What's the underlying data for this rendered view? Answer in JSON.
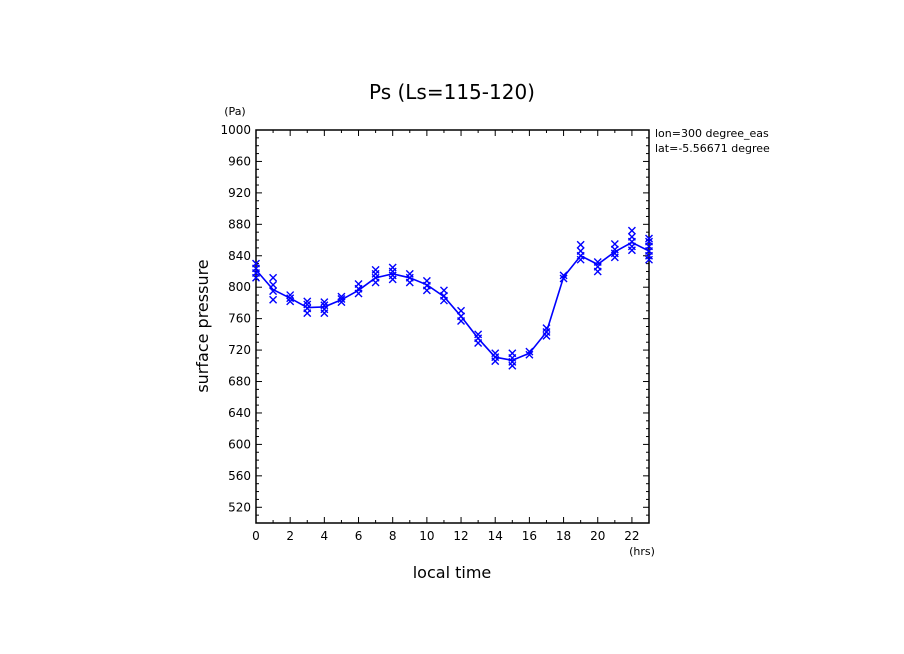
{
  "chart_data": {
    "type": "line",
    "title": "Ps (Ls=115-120)",
    "xlabel": "local time",
    "ylabel": "surface pressure",
    "x_unit": "(hrs)",
    "y_unit": "(Pa)",
    "xlim": [
      0,
      23
    ],
    "ylim": [
      500,
      1000
    ],
    "x_ticks": [
      0,
      2,
      4,
      6,
      8,
      10,
      12,
      14,
      16,
      18,
      20,
      22
    ],
    "y_ticks": [
      520,
      560,
      600,
      640,
      680,
      720,
      760,
      800,
      840,
      880,
      920,
      960,
      1000
    ],
    "x_minor_step": 1,
    "y_minor_step": 10,
    "grid": false,
    "annotations": [
      "lon=300 degree_eas",
      "lat=-5.56671 degree"
    ],
    "color": "#0000ff",
    "series": [
      {
        "style": "line",
        "x": [
          0,
          1,
          2,
          3,
          4,
          5,
          6,
          7,
          8,
          9,
          10,
          11,
          12,
          13,
          14,
          15,
          16,
          17,
          18,
          19,
          20,
          21,
          22,
          23
        ],
        "values": [
          822,
          797,
          786,
          774,
          775,
          784,
          796,
          812,
          817,
          812,
          803,
          788,
          763,
          735,
          711,
          707,
          716,
          743,
          813,
          840,
          829,
          845,
          857,
          846
        ]
      },
      {
        "style": "x-markers",
        "points": [
          [
            0,
            812
          ],
          [
            0,
            818
          ],
          [
            0,
            824
          ],
          [
            0,
            830
          ],
          [
            1,
            784
          ],
          [
            1,
            795
          ],
          [
            1,
            803
          ],
          [
            1,
            812
          ],
          [
            2,
            782
          ],
          [
            2,
            786
          ],
          [
            2,
            790
          ],
          [
            3,
            767
          ],
          [
            3,
            773
          ],
          [
            3,
            778
          ],
          [
            3,
            782
          ],
          [
            4,
            767
          ],
          [
            4,
            772
          ],
          [
            4,
            777
          ],
          [
            4,
            781
          ],
          [
            5,
            781
          ],
          [
            5,
            785
          ],
          [
            5,
            788
          ],
          [
            6,
            792
          ],
          [
            6,
            798
          ],
          [
            6,
            804
          ],
          [
            7,
            806
          ],
          [
            7,
            812
          ],
          [
            7,
            817
          ],
          [
            7,
            822
          ],
          [
            8,
            810
          ],
          [
            8,
            815
          ],
          [
            8,
            820
          ],
          [
            8,
            825
          ],
          [
            9,
            806
          ],
          [
            9,
            812
          ],
          [
            9,
            817
          ],
          [
            10,
            796
          ],
          [
            10,
            802
          ],
          [
            10,
            808
          ],
          [
            11,
            783
          ],
          [
            11,
            789
          ],
          [
            11,
            796
          ],
          [
            12,
            757
          ],
          [
            12,
            763
          ],
          [
            12,
            770
          ],
          [
            13,
            729
          ],
          [
            13,
            735
          ],
          [
            13,
            740
          ],
          [
            14,
            706
          ],
          [
            14,
            711
          ],
          [
            14,
            716
          ],
          [
            15,
            700
          ],
          [
            15,
            705
          ],
          [
            15,
            710
          ],
          [
            15,
            716
          ],
          [
            16,
            714
          ],
          [
            16,
            718
          ],
          [
            17,
            738
          ],
          [
            17,
            743
          ],
          [
            17,
            748
          ],
          [
            18,
            811
          ],
          [
            18,
            815
          ],
          [
            19,
            835
          ],
          [
            19,
            840
          ],
          [
            19,
            846
          ],
          [
            19,
            854
          ],
          [
            20,
            820
          ],
          [
            20,
            826
          ],
          [
            20,
            832
          ],
          [
            21,
            838
          ],
          [
            21,
            843
          ],
          [
            21,
            848
          ],
          [
            21,
            855
          ],
          [
            22,
            847
          ],
          [
            22,
            852
          ],
          [
            22,
            858
          ],
          [
            22,
            864
          ],
          [
            22,
            872
          ],
          [
            23,
            835
          ],
          [
            23,
            840
          ],
          [
            23,
            846
          ],
          [
            23,
            852
          ],
          [
            23,
            858
          ],
          [
            23,
            862
          ]
        ]
      }
    ]
  }
}
